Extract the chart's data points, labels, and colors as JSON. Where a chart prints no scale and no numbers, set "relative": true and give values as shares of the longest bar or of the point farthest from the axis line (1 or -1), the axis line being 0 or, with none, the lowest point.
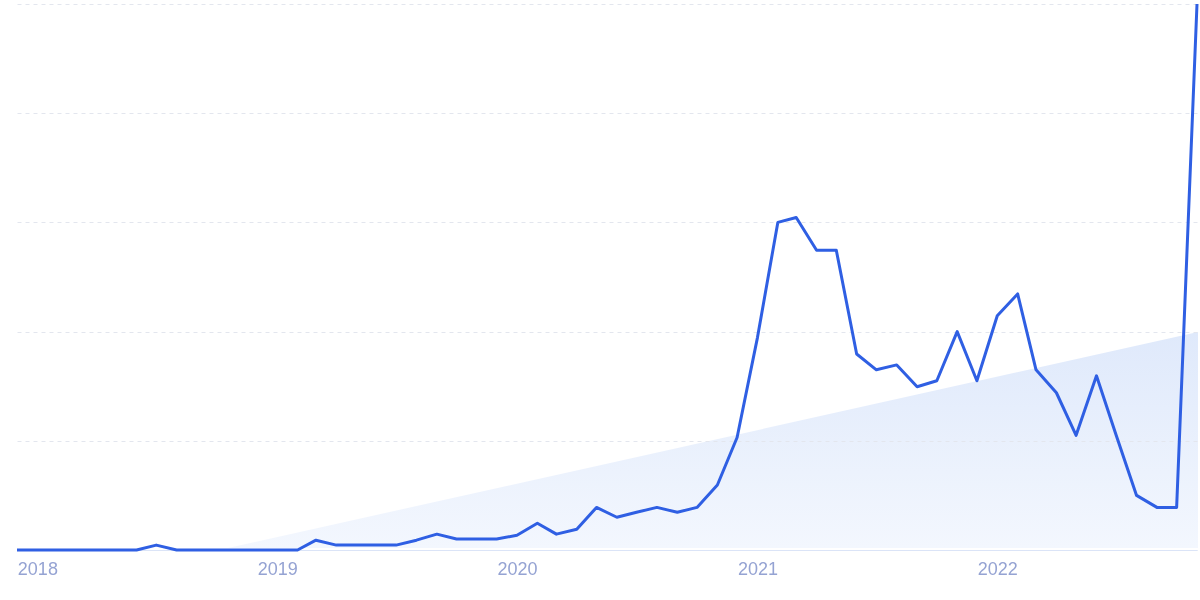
{
  "chart_data": {
    "type": "line",
    "relative": true,
    "grid": "y",
    "line_style": "solid",
    "marker": "none",
    "x": [
      "2017-12",
      "2018-01",
      "2018-02",
      "2018-03",
      "2018-04",
      "2018-05",
      "2018-06",
      "2018-07",
      "2018-08",
      "2018-09",
      "2018-10",
      "2018-11",
      "2018-12",
      "2019-01",
      "2019-02",
      "2019-03",
      "2019-04",
      "2019-05",
      "2019-06",
      "2019-07",
      "2019-08",
      "2019-09",
      "2019-10",
      "2019-11",
      "2019-12",
      "2020-01",
      "2020-02",
      "2020-03",
      "2020-04",
      "2020-05",
      "2020-06",
      "2020-07",
      "2020-08",
      "2020-09",
      "2020-10",
      "2020-11",
      "2020-12",
      "2021-01",
      "2021-02",
      "2021-03",
      "2021-04",
      "2021-05",
      "2021-06",
      "2021-07",
      "2021-08",
      "2021-09",
      "2021-10",
      "2021-11",
      "2021-12",
      "2022-01",
      "2022-02",
      "2022-03",
      "2022-04",
      "2022-05",
      "2022-06",
      "2022-07",
      "2022-08",
      "2022-09",
      "2022-10",
      "2022-11"
    ],
    "xlim": [
      "2017-12",
      "2022-11"
    ],
    "xticks": [
      {
        "value": "2018",
        "label": "2018"
      },
      {
        "value": "2019",
        "label": "2019"
      },
      {
        "value": "2020",
        "label": "2020"
      },
      {
        "value": "2021",
        "label": "2021"
      },
      {
        "value": "2022",
        "label": "2022"
      }
    ],
    "series": [
      {
        "color": "#2f5fe3",
        "values": [
          0,
          0,
          0,
          0,
          0,
          0,
          0,
          0.009,
          0,
          0,
          0,
          0,
          0,
          0,
          0,
          0.018,
          0.009,
          0.009,
          0.009,
          0.009,
          0.018,
          0.029,
          0.02,
          0.02,
          0.02,
          0.027,
          0.049,
          0.029,
          0.038,
          0.078,
          0.06,
          0.069,
          0.078,
          0.069,
          0.078,
          0.119,
          0.206,
          0.389,
          0.6,
          0.609,
          0.549,
          0.549,
          0.359,
          0.33,
          0.339,
          0.299,
          0.31,
          0.4,
          0.31,
          0.429,
          0.469,
          0.33,
          0.288,
          0.21,
          0.319,
          0.21,
          0.1,
          0.078,
          0.078,
          1
        ]
      }
    ]
  }
}
